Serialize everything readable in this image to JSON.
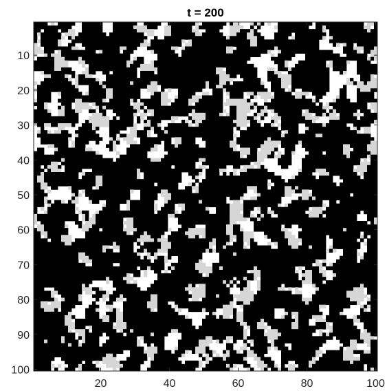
{
  "chart_data": {
    "type": "heatmap",
    "title": "t = 200",
    "xlabel": "",
    "ylabel": "",
    "grid_size": [
      100,
      100
    ],
    "xlim": [
      0.5,
      100.5
    ],
    "ylim": [
      0.5,
      100.5
    ],
    "y_axis_direction": "reversed",
    "x_ticks": [
      20,
      40,
      60,
      80,
      100
    ],
    "x_tick_labels": [
      "20",
      "40",
      "60",
      "80",
      "100"
    ],
    "y_ticks": [
      10,
      20,
      30,
      40,
      50,
      60,
      70,
      80,
      90,
      100
    ],
    "y_tick_labels": [
      "10",
      "20",
      "30",
      "40",
      "50",
      "60",
      "70",
      "80",
      "90",
      "100"
    ],
    "states": [
      {
        "value": 0,
        "color": "#ffffff"
      },
      {
        "value": 1,
        "color": "#d6d6d6"
      },
      {
        "value": 2,
        "color": "#000000"
      }
    ],
    "grid": false,
    "legend": "none"
  }
}
